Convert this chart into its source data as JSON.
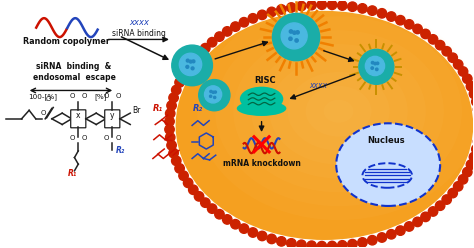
{
  "bg_color": "#ffffff",
  "cell_color": "#f5a020",
  "cell_dot_color": "#cc2200",
  "nanoparticle_teal": "#1aada8",
  "nanoparticle_dark": "#0d7a75",
  "nanoparticle_blue_inner": "#4ab8e0",
  "nanoparticle_inner2": "#2288c0",
  "nucleus_border": "#1133cc",
  "nucleus_fill": "#c8deff",
  "risc_fill": "#00c0a0",
  "risc_dark": "#008878",
  "text_black": "#111111",
  "text_blue": "#2244bb",
  "text_red": "#cc1100",
  "polymer_color": "#222222",
  "wave_red": "#cc1100",
  "wave_blue": "#2244bb",
  "mrna_blue": "#2244bb",
  "mrna_red": "#cc1100",
  "xxxx_color": "#2244bb",
  "orange_ring": "#f08000",
  "gold_ring": "#c89000",
  "arrow_black": "#111111",
  "figsize": [
    4.74,
    2.48
  ],
  "dpi": 100,
  "xlim": [
    0,
    10
  ],
  "ylim": [
    0,
    5.22
  ]
}
